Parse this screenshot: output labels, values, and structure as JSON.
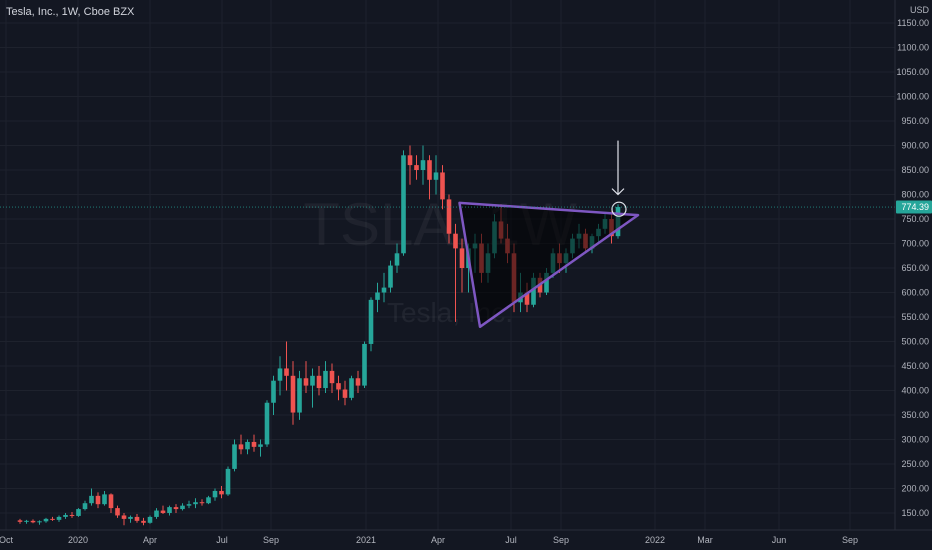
{
  "header": {
    "symbol_title": "Tesla, Inc., 1W, Cboe BZX"
  },
  "watermark": {
    "ticker": "TSLA, 1W",
    "name": "Tesla, Inc."
  },
  "price_axis": {
    "currency": "USD",
    "ticks": [
      "1150.00",
      "1100.00",
      "1050.00",
      "1000.00",
      "950.00",
      "900.00",
      "850.00",
      "800.00",
      "750.00",
      "700.00",
      "650.00",
      "600.00",
      "550.00",
      "500.00",
      "450.00",
      "400.00",
      "350.00",
      "300.00",
      "250.00",
      "200.00",
      "150.00"
    ]
  },
  "time_axis": {
    "labels": [
      "Oct",
      "2020",
      "Apr",
      "Jul",
      "Sep",
      "2021",
      "Apr",
      "Jul",
      "Sep",
      "2022",
      "Mar",
      "Jun",
      "Sep"
    ]
  },
  "last_price": {
    "label": "774.39",
    "value": 774.39
  },
  "colors": {
    "up": "#26a69a",
    "down": "#ef5350",
    "pattern": "#7e57c2",
    "background": "#131722",
    "grid": "#1e222d",
    "axis_text": "#b2b5be"
  },
  "chart_data": {
    "type": "candlestick",
    "title": "Tesla, Inc., 1W, Cboe BZX",
    "currency": "USD",
    "ylim": [
      125,
      1180
    ],
    "grid": true,
    "candles": [
      [
        135,
        138,
        128,
        132
      ],
      [
        132,
        136,
        128,
        134
      ],
      [
        134,
        137,
        129,
        131
      ],
      [
        131,
        135,
        126,
        133
      ],
      [
        133,
        140,
        130,
        138
      ],
      [
        138,
        142,
        134,
        136
      ],
      [
        136,
        145,
        132,
        142
      ],
      [
        142,
        150,
        138,
        146
      ],
      [
        146,
        152,
        140,
        144
      ],
      [
        144,
        160,
        142,
        158
      ],
      [
        158,
        175,
        155,
        170
      ],
      [
        170,
        200,
        165,
        185
      ],
      [
        185,
        192,
        160,
        168
      ],
      [
        168,
        195,
        165,
        188
      ],
      [
        188,
        190,
        150,
        160
      ],
      [
        160,
        165,
        140,
        145
      ],
      [
        145,
        150,
        125,
        138
      ],
      [
        138,
        145,
        130,
        142
      ],
      [
        142,
        148,
        130,
        134
      ],
      [
        134,
        140,
        125,
        130
      ],
      [
        130,
        145,
        128,
        142
      ],
      [
        142,
        160,
        138,
        155
      ],
      [
        155,
        165,
        148,
        150
      ],
      [
        150,
        165,
        145,
        162
      ],
      [
        162,
        168,
        150,
        158
      ],
      [
        158,
        170,
        155,
        165
      ],
      [
        165,
        175,
        160,
        168
      ],
      [
        168,
        180,
        160,
        172
      ],
      [
        172,
        178,
        165,
        170
      ],
      [
        170,
        185,
        168,
        182
      ],
      [
        182,
        200,
        175,
        195
      ],
      [
        195,
        205,
        180,
        188
      ],
      [
        188,
        245,
        185,
        240
      ],
      [
        240,
        300,
        235,
        290
      ],
      [
        290,
        310,
        270,
        280
      ],
      [
        280,
        300,
        270,
        295
      ],
      [
        295,
        310,
        275,
        285
      ],
      [
        285,
        300,
        265,
        290
      ],
      [
        290,
        380,
        285,
        375
      ],
      [
        375,
        430,
        350,
        420
      ],
      [
        420,
        470,
        390,
        445
      ],
      [
        445,
        500,
        400,
        430
      ],
      [
        430,
        460,
        330,
        355
      ],
      [
        355,
        440,
        340,
        425
      ],
      [
        425,
        460,
        395,
        410
      ],
      [
        410,
        445,
        365,
        430
      ],
      [
        430,
        450,
        390,
        405
      ],
      [
        405,
        460,
        395,
        440
      ],
      [
        440,
        455,
        395,
        415
      ],
      [
        415,
        430,
        380,
        402
      ],
      [
        402,
        420,
        370,
        385
      ],
      [
        385,
        430,
        380,
        425
      ],
      [
        425,
        440,
        395,
        410
      ],
      [
        410,
        500,
        405,
        495
      ],
      [
        495,
        590,
        480,
        585
      ],
      [
        585,
        620,
        560,
        600
      ],
      [
        600,
        640,
        580,
        610
      ],
      [
        610,
        665,
        600,
        655
      ],
      [
        655,
        700,
        640,
        680
      ],
      [
        680,
        890,
        675,
        880
      ],
      [
        880,
        900,
        820,
        860
      ],
      [
        860,
        880,
        830,
        850
      ],
      [
        850,
        900,
        820,
        870
      ],
      [
        870,
        880,
        790,
        830
      ],
      [
        830,
        880,
        800,
        845
      ],
      [
        845,
        860,
        770,
        790
      ],
      [
        790,
        800,
        700,
        720
      ],
      [
        720,
        740,
        540,
        690
      ],
      [
        690,
        710,
        600,
        650
      ],
      [
        650,
        700,
        600,
        690
      ],
      [
        690,
        720,
        640,
        700
      ],
      [
        700,
        720,
        620,
        640
      ],
      [
        640,
        700,
        620,
        680
      ],
      [
        680,
        760,
        670,
        745
      ],
      [
        745,
        780,
        700,
        710
      ],
      [
        710,
        740,
        660,
        680
      ],
      [
        680,
        700,
        560,
        580
      ],
      [
        580,
        640,
        560,
        600
      ],
      [
        600,
        620,
        560,
        575
      ],
      [
        575,
        640,
        570,
        630
      ],
      [
        630,
        640,
        590,
        600
      ],
      [
        600,
        650,
        595,
        640
      ],
      [
        640,
        690,
        630,
        680
      ],
      [
        680,
        700,
        640,
        660
      ],
      [
        660,
        690,
        640,
        680
      ],
      [
        680,
        720,
        670,
        710
      ],
      [
        710,
        740,
        690,
        720
      ],
      [
        720,
        730,
        680,
        690
      ],
      [
        690,
        720,
        680,
        715
      ],
      [
        715,
        740,
        700,
        730
      ],
      [
        730,
        760,
        720,
        750
      ],
      [
        750,
        765,
        700,
        715
      ],
      [
        715,
        780,
        710,
        774.39
      ]
    ],
    "triangle_pattern": {
      "color": "#7e57c2"
    },
    "annotations": [
      "down-arrow",
      "circle-marker"
    ]
  }
}
